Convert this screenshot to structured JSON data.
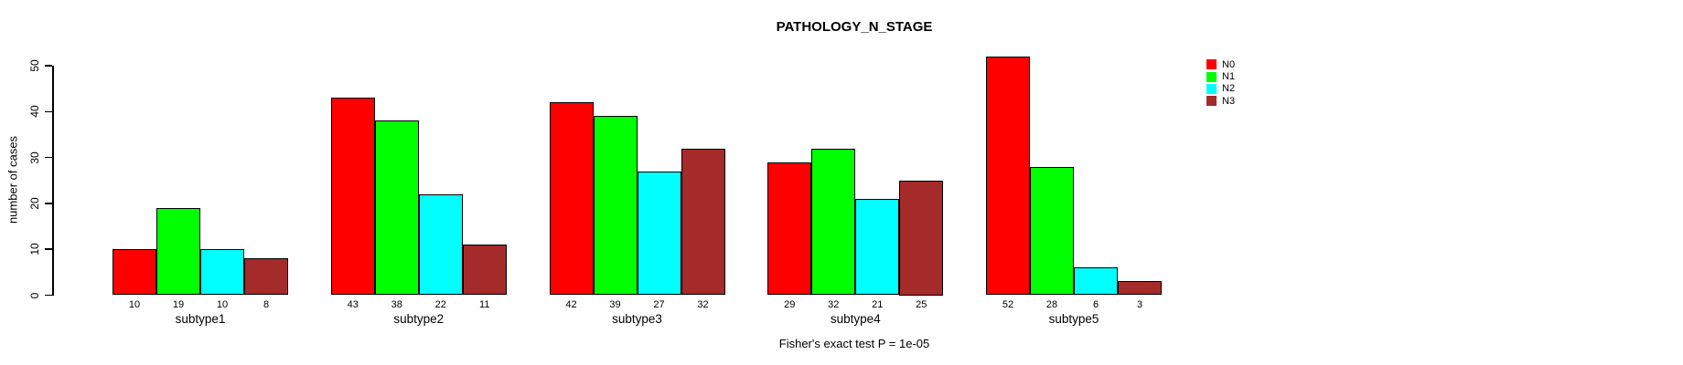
{
  "chart_data": {
    "type": "bar",
    "title": "PATHOLOGY_N_STAGE",
    "ylabel": "number of cases",
    "xlabel": "",
    "footer": "Fisher's exact test P = 1e-05",
    "categories": [
      "subtype1",
      "subtype2",
      "subtype3",
      "subtype4",
      "subtype5"
    ],
    "series": [
      {
        "name": "N0",
        "color": "#FF0000",
        "values": [
          10,
          43,
          42,
          29,
          52
        ]
      },
      {
        "name": "N1",
        "color": "#00FF00",
        "values": [
          19,
          38,
          39,
          32,
          28
        ]
      },
      {
        "name": "N2",
        "color": "#00FFFF",
        "values": [
          10,
          22,
          27,
          21,
          6
        ]
      },
      {
        "name": "N3",
        "color": "#A52A2A",
        "values": [
          8,
          11,
          32,
          25,
          3
        ]
      }
    ],
    "yticks": [
      0,
      10,
      20,
      30,
      40,
      50
    ],
    "ylim": [
      0,
      52
    ],
    "grid": false,
    "bar_value_labels": true,
    "legend_position": "right-top"
  }
}
